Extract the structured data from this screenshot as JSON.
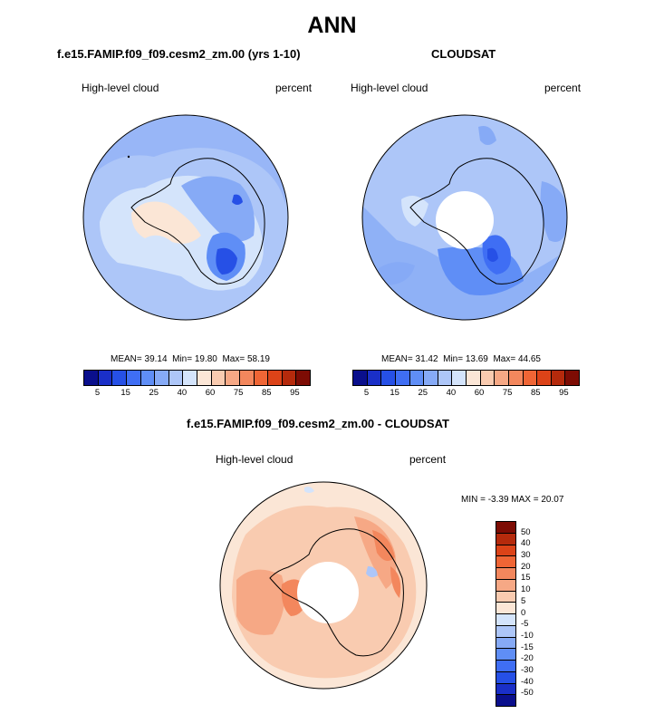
{
  "title": "ANN",
  "panels": [
    {
      "title": "f.e15.FAMIP.f09_f09.cesm2_zm.00 (yrs 1-10)",
      "left_label": "High-level cloud",
      "right_label": "percent",
      "stats": {
        "mean_label": "MEAN=",
        "mean": "39.14",
        "min_label": "Min=",
        "min": "19.80",
        "max_label": "Max=",
        "max": "58.19"
      }
    },
    {
      "title": "CLOUDSAT",
      "left_label": "High-level cloud",
      "right_label": "percent",
      "stats": {
        "mean_label": "MEAN=",
        "mean": "31.42",
        "min_label": "Min=",
        "min": "13.69",
        "max_label": "Max=",
        "max": "44.65"
      }
    },
    {
      "title": "f.e15.FAMIP.f09_f09.cesm2_zm.00 - CLOUDSAT",
      "left_label": "High-level cloud",
      "right_label": "percent",
      "minmax": "MIN =  -3.39 MAX =  20.07"
    }
  ],
  "abs_colorbar": {
    "colors": [
      "#0a0f8c",
      "#1a2fc8",
      "#2650e6",
      "#3f6ef4",
      "#5f8ef6",
      "#86aaf6",
      "#adc6f8",
      "#d4e4fb",
      "#fbe6d6",
      "#f9cbb0",
      "#f6a885",
      "#f3875d",
      "#ef6535",
      "#dc4318",
      "#b52a0c",
      "#7d0c04"
    ],
    "labels": [
      "5",
      "15",
      "25",
      "40",
      "60",
      "75",
      "85",
      "95"
    ]
  },
  "diff_colorbar": {
    "colors": [
      "#7d0c04",
      "#b52a0c",
      "#dc4318",
      "#ef6535",
      "#f3875d",
      "#f6a885",
      "#f9cbb0",
      "#fbe6d6",
      "#d4e4fb",
      "#adc6f8",
      "#86aaf6",
      "#5f8ef6",
      "#3f6ef4",
      "#2650e6",
      "#1a2fc8",
      "#0a0f8c"
    ],
    "labels": [
      "50",
      "40",
      "30",
      "20",
      "15",
      "10",
      "5",
      "0",
      "-5",
      "-10",
      "-15",
      "-20",
      "-30",
      "-40",
      "-50"
    ]
  }
}
